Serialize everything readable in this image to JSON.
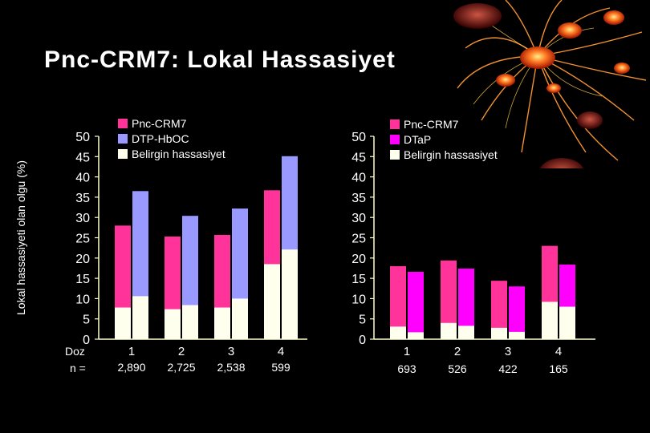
{
  "title": "Pnc-CRM7:  Lokal Hassasiyet",
  "ylabel": "Lokal hassasiyeti olan olgu (%)",
  "row_labels": {
    "dose": "Doz",
    "n": "n ="
  },
  "colors": {
    "pnc": "#FF3399",
    "dtphboc": "#9999FF",
    "dtap": "#FF00FF",
    "belirgin": "#FFFFEE",
    "axis": "#FFFFCC"
  },
  "chart_data": [
    {
      "type": "bar",
      "stacked_overlay": true,
      "ylim": [
        0,
        50
      ],
      "yticks": [
        "0",
        "5",
        "10",
        "15",
        "20",
        "25",
        "30",
        "35",
        "40",
        "45",
        "50"
      ],
      "categories": [
        "1",
        "2",
        "3",
        "4"
      ],
      "n": [
        "2,890",
        "2,725",
        "2,538",
        "599"
      ],
      "legend": [
        "Pnc-CRM7",
        "DTP-HbOC",
        "Belirgin hassasiyet"
      ],
      "series": [
        {
          "name": "Pnc-CRM7",
          "values": [
            28,
            25.3,
            25.7,
            36.7
          ],
          "belirgin": [
            7.8,
            7.4,
            7.8,
            18.5
          ]
        },
        {
          "name": "DTP-HbOC",
          "values": [
            36.5,
            30.4,
            32.2,
            45.1
          ],
          "belirgin": [
            10.6,
            8.4,
            10,
            22.1
          ]
        }
      ]
    },
    {
      "type": "bar",
      "stacked_overlay": true,
      "ylim": [
        0,
        50
      ],
      "yticks": [
        "0",
        "5",
        "10",
        "15",
        "20",
        "25",
        "30",
        "35",
        "40",
        "45",
        "50"
      ],
      "categories": [
        "1",
        "2",
        "3",
        "4"
      ],
      "n": [
        "693",
        "526",
        "422",
        "165"
      ],
      "legend": [
        "Pnc-CRM7",
        "DTaP",
        "Belirgin hassasiyet"
      ],
      "series": [
        {
          "name": "Pnc-CRM7",
          "values": [
            18,
            19.4,
            14.4,
            23
          ],
          "belirgin": [
            3.1,
            4,
            2.8,
            9.2
          ]
        },
        {
          "name": "DTaP",
          "values": [
            16.6,
            17.4,
            13,
            18.4
          ],
          "belirgin": [
            1.7,
            3.3,
            1.8,
            8
          ]
        }
      ]
    }
  ]
}
